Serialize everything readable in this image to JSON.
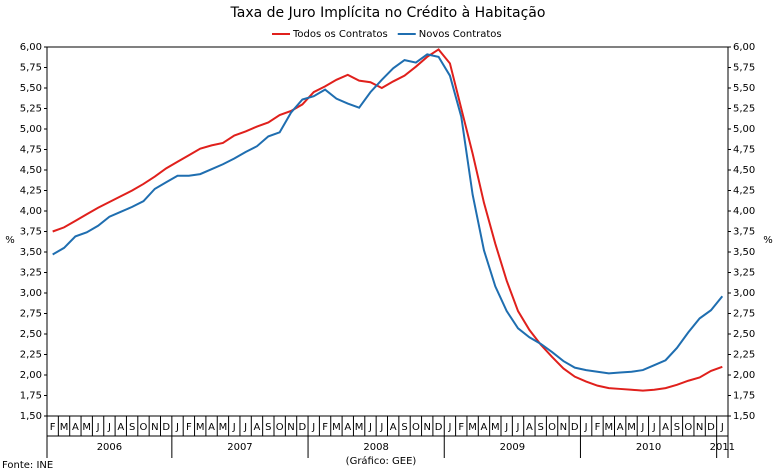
{
  "chart_data": {
    "type": "line",
    "title": "Taxa de Juro Implícita no Crédito à Habitação",
    "y_label": "%",
    "y2_label": "%",
    "source": "Fonte: INE",
    "credit": "(Gráfico: GEE)",
    "categories": [
      "F",
      "M",
      "A",
      "M",
      "J",
      "J",
      "A",
      "S",
      "O",
      "N",
      "D",
      "J",
      "F",
      "M",
      "A",
      "M",
      "J",
      "J",
      "A",
      "S",
      "O",
      "N",
      "D",
      "J",
      "F",
      "M",
      "A",
      "M",
      "J",
      "J",
      "A",
      "S",
      "O",
      "N",
      "D",
      "J",
      "F",
      "M",
      "A",
      "M",
      "J",
      "J",
      "A",
      "S",
      "O",
      "N",
      "D",
      "J",
      "F",
      "M",
      "A",
      "M",
      "J",
      "J",
      "A",
      "S",
      "O",
      "N",
      "D",
      "J"
    ],
    "year_groups": [
      {
        "label": "2006",
        "span": 11
      },
      {
        "label": "2007",
        "span": 12
      },
      {
        "label": "2008",
        "span": 12
      },
      {
        "label": "2009",
        "span": 12
      },
      {
        "label": "2010",
        "span": 12
      },
      {
        "label": "2011",
        "span": 1
      }
    ],
    "series": [
      {
        "name": "Todos os Contratos",
        "color": "#e0201c",
        "values": [
          3.75,
          3.8,
          3.88,
          3.96,
          4.04,
          4.11,
          4.18,
          4.25,
          4.33,
          4.42,
          4.52,
          4.6,
          4.68,
          4.76,
          4.8,
          4.83,
          4.92,
          4.97,
          5.03,
          5.08,
          5.17,
          5.22,
          5.3,
          5.45,
          5.52,
          5.6,
          5.66,
          5.59,
          5.57,
          5.5,
          5.58,
          5.65,
          5.76,
          5.88,
          5.97,
          5.8,
          5.25,
          4.7,
          4.1,
          3.6,
          3.15,
          2.78,
          2.55,
          2.37,
          2.22,
          2.08,
          1.98,
          1.92,
          1.87,
          1.84,
          1.83,
          1.82,
          1.81,
          1.82,
          1.84,
          1.88,
          1.93,
          1.97,
          2.05,
          2.1
        ]
      },
      {
        "name": "Novos Contratos",
        "color": "#1f6eb0",
        "values": [
          3.47,
          3.55,
          3.69,
          3.74,
          3.82,
          3.93,
          3.99,
          4.05,
          4.12,
          4.27,
          4.35,
          4.43,
          4.43,
          4.45,
          4.51,
          4.57,
          4.64,
          4.72,
          4.79,
          4.91,
          4.96,
          5.2,
          5.36,
          5.4,
          5.48,
          5.37,
          5.31,
          5.26,
          5.45,
          5.6,
          5.74,
          5.84,
          5.81,
          5.91,
          5.88,
          5.65,
          5.15,
          4.2,
          3.52,
          3.08,
          2.78,
          2.57,
          2.46,
          2.38,
          2.28,
          2.17,
          2.09,
          2.06,
          2.04,
          2.02,
          2.03,
          2.04,
          2.06,
          2.12,
          2.18,
          2.33,
          2.52,
          2.69,
          2.79,
          2.96
        ]
      }
    ],
    "ylim": [
      1.5,
      6.0
    ],
    "yticks": [
      {
        "value": 1.5,
        "label": "1,50"
      },
      {
        "value": 1.75,
        "label": "1,75"
      },
      {
        "value": 2,
        "label": "2,00"
      },
      {
        "value": 2.25,
        "label": "2,25"
      },
      {
        "value": 2.5,
        "label": "2,50"
      },
      {
        "value": 2.75,
        "label": "2,75"
      },
      {
        "value": 3,
        "label": "3,00"
      },
      {
        "value": 3.25,
        "label": "3,25"
      },
      {
        "value": 3.5,
        "label": "3,50"
      },
      {
        "value": 3.75,
        "label": "3,75"
      },
      {
        "value": 4,
        "label": "4,00"
      },
      {
        "value": 4.25,
        "label": "4,25"
      },
      {
        "value": 4.5,
        "label": "4,50"
      },
      {
        "value": 4.75,
        "label": "4,75"
      },
      {
        "value": 5,
        "label": "5,00"
      },
      {
        "value": 5.25,
        "label": "5,25"
      },
      {
        "value": 5.5,
        "label": "5,50"
      },
      {
        "value": 5.75,
        "label": "5,75"
      },
      {
        "value": 6,
        "label": "6,00"
      }
    ],
    "y2lim": [
      1.5,
      6.0
    ],
    "y2ticks": [
      {
        "value": 1.5,
        "label": "1,50"
      },
      {
        "value": 1.75,
        "label": "1,75"
      },
      {
        "value": 2,
        "label": "2,00"
      },
      {
        "value": 2.25,
        "label": "2,25"
      },
      {
        "value": 2.5,
        "label": "2,50"
      },
      {
        "value": 2.75,
        "label": "2,75"
      },
      {
        "value": 3,
        "label": "3,00"
      },
      {
        "value": 3.25,
        "label": "3,25"
      },
      {
        "value": 3.5,
        "label": "3,50"
      },
      {
        "value": 3.75,
        "label": "3,75"
      },
      {
        "value": 4,
        "label": "4,00"
      },
      {
        "value": 4.25,
        "label": "4,25"
      },
      {
        "value": 4.5,
        "label": "4,50"
      },
      {
        "value": 4.75,
        "label": "4,75"
      },
      {
        "value": 5,
        "label": "5,00"
      },
      {
        "value": 5.25,
        "label": "5,25"
      },
      {
        "value": 5.5,
        "label": "5,50"
      },
      {
        "value": 5.75,
        "label": "5,75"
      },
      {
        "value": 6,
        "label": "6,00"
      }
    ],
    "grid": false,
    "legend": "top"
  }
}
